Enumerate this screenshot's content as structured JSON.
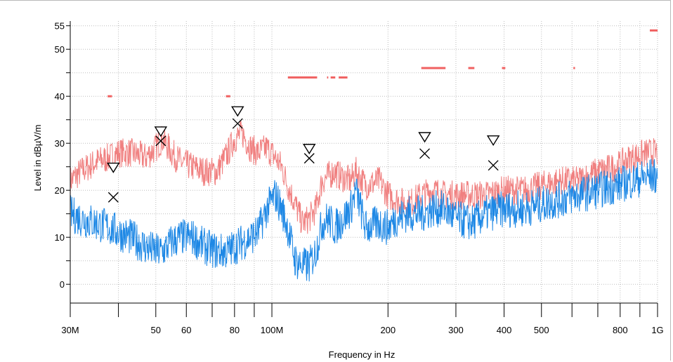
{
  "chart_data": {
    "type": "line",
    "title": "",
    "xlabel": "Frequency in Hz",
    "ylabel": "Level in dBµV/m",
    "x_scale": "log",
    "xlim": [
      30000000,
      1000000000
    ],
    "ylim": [
      -4,
      56
    ],
    "grid": true,
    "x_tick_labels": [
      {
        "value": 30000000,
        "label": "30M"
      },
      {
        "value": 50000000,
        "label": "50"
      },
      {
        "value": 60000000,
        "label": "60"
      },
      {
        "value": 80000000,
        "label": "80"
      },
      {
        "value": 100000000,
        "label": "100M"
      },
      {
        "value": 200000000,
        "label": "200"
      },
      {
        "value": 300000000,
        "label": "300"
      },
      {
        "value": 400000000,
        "label": "400"
      },
      {
        "value": 500000000,
        "label": "500"
      },
      {
        "value": 800000000,
        "label": "800"
      },
      {
        "value": 1000000000,
        "label": "1G"
      }
    ],
    "x_minor_ticks": [
      40000000,
      70000000,
      90000000,
      600000000,
      700000000,
      900000000
    ],
    "y_tick_labels": [
      {
        "value": 0,
        "label": "0"
      },
      {
        "value": 10,
        "label": "10"
      },
      {
        "value": 20,
        "label": "20"
      },
      {
        "value": 30,
        "label": "30"
      },
      {
        "value": 40,
        "label": "40"
      },
      {
        "value": 50,
        "label": "50"
      },
      {
        "value": 55,
        "label": "55"
      }
    ],
    "y_minor_ticks": [
      5,
      15,
      25,
      35,
      45
    ],
    "series": [
      {
        "color": "#f08080",
        "x": [
          30000000,
          32000000,
          35000000,
          38000000,
          40000000,
          43000000,
          47000000,
          50000000,
          52000000,
          55000000,
          58000000,
          62000000,
          67000000,
          72000000,
          77000000,
          80000000,
          84000000,
          88000000,
          92000000,
          97000000,
          102000000,
          106000000,
          110000000,
          115000000,
          120000000,
          125000000,
          130000000,
          135000000,
          140000000,
          145000000,
          150000000,
          160000000,
          165000000,
          175000000,
          190000000,
          200000000,
          210000000,
          225000000,
          245000000,
          262000000,
          280000000,
          300000000,
          330000000,
          360000000,
          400000000,
          450000000,
          500000000,
          560000000,
          620000000,
          700000000,
          780000000,
          860000000,
          950000000,
          1000000000
        ],
        "values": [
          22,
          24,
          26,
          27,
          28,
          28,
          27,
          29,
          31,
          28,
          26,
          25,
          24,
          24,
          28,
          31,
          32,
          29,
          28,
          29,
          27,
          25,
          21,
          17,
          13,
          14,
          16,
          22,
          23,
          24,
          23,
          22,
          24,
          21,
          22,
          19,
          18,
          17,
          19,
          20,
          19,
          19,
          19,
          19,
          20,
          20,
          21,
          22,
          22,
          24,
          25,
          27,
          28,
          28
        ]
      },
      {
        "color": "#1e88e5",
        "x": [
          30000000,
          32000000,
          35000000,
          38000000,
          40000000,
          43000000,
          47000000,
          50000000,
          52000000,
          55000000,
          58000000,
          62000000,
          67000000,
          72000000,
          77000000,
          80000000,
          84000000,
          88000000,
          92000000,
          97000000,
          102000000,
          106000000,
          110000000,
          115000000,
          120000000,
          125000000,
          130000000,
          135000000,
          140000000,
          145000000,
          150000000,
          160000000,
          165000000,
          175000000,
          190000000,
          200000000,
          210000000,
          225000000,
          245000000,
          262000000,
          280000000,
          300000000,
          330000000,
          360000000,
          400000000,
          450000000,
          500000000,
          560000000,
          620000000,
          700000000,
          780000000,
          860000000,
          950000000,
          1000000000
        ],
        "values": [
          15,
          14,
          13,
          12,
          11,
          10,
          8,
          7,
          7,
          9,
          10,
          10,
          8,
          7,
          7,
          8,
          9,
          10,
          11,
          16,
          19,
          16,
          12,
          5,
          4,
          4,
          7,
          13,
          14,
          12,
          13,
          16,
          20,
          12,
          13,
          12,
          14,
          15,
          15,
          16,
          16,
          14,
          13,
          15,
          16,
          16,
          17,
          18,
          19,
          20,
          21,
          22,
          23,
          23
        ]
      }
    ],
    "limit_segments": {
      "color": "#f06060",
      "segments": [
        {
          "x": [
            37500000,
            38500000
          ],
          "y": 40
        },
        {
          "x": [
            76000000,
            78000000
          ],
          "y": 40
        },
        {
          "x": [
            110000000,
            131000000
          ],
          "y": 44
        },
        {
          "x": [
            139000000,
            140000000
          ],
          "y": 44
        },
        {
          "x": [
            142000000,
            146000000
          ],
          "y": 44
        },
        {
          "x": [
            149000000,
            157000000
          ],
          "y": 44
        },
        {
          "x": [
            244000000,
            282000000
          ],
          "y": 46
        },
        {
          "x": [
            323000000,
            335000000
          ],
          "y": 46
        },
        {
          "x": [
            395000000,
            403000000
          ],
          "y": 46
        },
        {
          "x": [
            605000000,
            611000000
          ],
          "y": 46
        },
        {
          "x": [
            955000000,
            1000000000
          ],
          "y": 54
        }
      ]
    },
    "peak_markers": [
      {
        "x": 38800000,
        "y": 18.5,
        "shape": "x"
      },
      {
        "x": 51500000,
        "y": 30.5,
        "shape": "x"
      },
      {
        "x": 81500000,
        "y": 34.2,
        "shape": "x"
      },
      {
        "x": 125000000,
        "y": 26.8,
        "shape": "x"
      },
      {
        "x": 249000000,
        "y": 27.8,
        "shape": "x"
      },
      {
        "x": 375000000,
        "y": 25.3,
        "shape": "x"
      },
      {
        "x": 38800000,
        "y": 24.8,
        "shape": "triangle-down"
      },
      {
        "x": 51500000,
        "y": 32.5,
        "shape": "triangle-down"
      },
      {
        "x": 81500000,
        "y": 36.8,
        "shape": "triangle-down"
      },
      {
        "x": 125000000,
        "y": 28.8,
        "shape": "triangle-down"
      },
      {
        "x": 249000000,
        "y": 31.3,
        "shape": "triangle-down"
      },
      {
        "x": 375000000,
        "y": 30.6,
        "shape": "triangle-down"
      }
    ]
  }
}
